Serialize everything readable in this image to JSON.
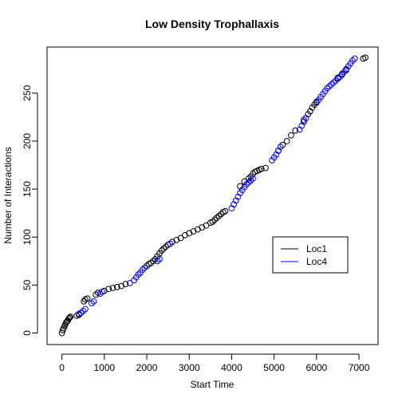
{
  "chart_data": {
    "type": "scatter",
    "title": "Low Density Trophallaxis",
    "xlabel": "Start Time",
    "ylabel": "Number of Interactions",
    "xlim": [
      -350,
      7450
    ],
    "ylim": [
      -12,
      298
    ],
    "xticks": [
      0,
      1000,
      2000,
      3000,
      4000,
      5000,
      6000,
      7000
    ],
    "yticks": [
      0,
      50,
      100,
      150,
      200,
      250
    ],
    "grid": false,
    "legend": {
      "position": "lower-right",
      "entries": [
        {
          "label": "Loc1",
          "color": "#000000"
        },
        {
          "label": "Loc4",
          "color": "#0000ff"
        }
      ]
    },
    "series": [
      {
        "name": "Loc1",
        "color": "#000000",
        "x": [
          0,
          20,
          40,
          60,
          80,
          100,
          120,
          140,
          160,
          180,
          200,
          350,
          400,
          450,
          520,
          550,
          600,
          800,
          850,
          1000,
          1100,
          1200,
          1300,
          1400,
          1500,
          2000,
          2050,
          2100,
          2150,
          2200,
          2250,
          2300,
          2350,
          2400,
          2450,
          2500,
          2600,
          2700,
          2800,
          2900,
          3000,
          3100,
          3200,
          3300,
          3400,
          3500,
          3550,
          3600,
          3650,
          3700,
          3750,
          3800,
          3850,
          4200,
          4300,
          4400,
          4450,
          4500,
          4550,
          4600,
          4650,
          4700,
          4800,
          5100,
          5200,
          5300,
          5400,
          5500,
          5700,
          5800,
          5850,
          5900,
          5950,
          6000,
          6500,
          6600,
          6700,
          7100,
          7150
        ],
        "y": [
          0,
          3,
          5,
          7,
          9,
          11,
          12,
          13,
          15,
          16,
          17,
          18,
          19,
          21,
          33,
          35,
          36,
          40,
          42,
          44,
          46,
          47,
          48,
          49,
          51,
          70,
          72,
          73,
          75,
          77,
          80,
          83,
          86,
          88,
          90,
          92,
          95,
          97,
          99,
          102,
          104,
          106,
          108,
          110,
          112,
          115,
          116,
          118,
          120,
          122,
          124,
          126,
          127,
          153,
          158,
          161,
          163,
          166,
          168,
          169,
          170,
          171,
          172,
          190,
          196,
          200,
          206,
          211,
          222,
          228,
          231,
          235,
          238,
          241,
          266,
          270,
          274,
          286,
          287
        ]
      },
      {
        "name": "Loc4",
        "color": "#0000ff",
        "x": [
          400,
          450,
          500,
          550,
          700,
          750,
          900,
          950,
          1600,
          1700,
          1750,
          1800,
          1850,
          1900,
          1950,
          2250,
          2300,
          2550,
          4000,
          4050,
          4100,
          4150,
          4200,
          4250,
          4300,
          4350,
          4400,
          4450,
          4500,
          4950,
          5000,
          5050,
          5100,
          5150,
          5600,
          5650,
          5700,
          5750,
          6000,
          6050,
          6100,
          6150,
          6200,
          6250,
          6300,
          6350,
          6400,
          6450,
          6500,
          6550,
          6600,
          6650,
          6700,
          6750,
          6800,
          6850,
          6900
        ],
        "y": [
          20,
          21,
          23,
          25,
          31,
          33,
          41,
          43,
          52,
          55,
          58,
          61,
          63,
          66,
          68,
          75,
          77,
          93,
          130,
          134,
          138,
          142,
          146,
          149,
          152,
          155,
          157,
          159,
          161,
          180,
          183,
          186,
          190,
          194,
          212,
          216,
          220,
          224,
          240,
          243,
          246,
          249,
          252,
          255,
          257,
          259,
          261,
          263,
          265,
          267,
          269,
          272,
          275,
          278,
          281,
          284,
          286
        ]
      }
    ]
  }
}
